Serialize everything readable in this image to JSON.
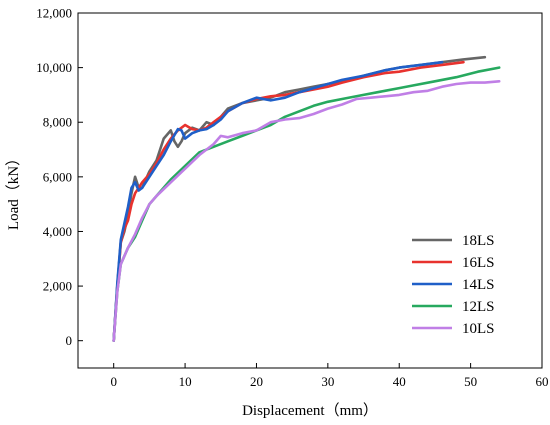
{
  "chart_data": {
    "type": "line",
    "xlabel": "Displacement（mm）",
    "ylabel": "Load（kN）",
    "xlim": [
      -5,
      60
    ],
    "ylim": [
      -1000,
      12000
    ],
    "x_ticks": [
      "0",
      "10",
      "20",
      "30",
      "40",
      "50",
      "60"
    ],
    "y_ticks": [
      "0",
      "2,000",
      "4,000",
      "6,000",
      "8,000",
      "10,000",
      "12,000"
    ],
    "x_tick_values": [
      0,
      10,
      20,
      30,
      40,
      50,
      60
    ],
    "y_tick_values": [
      0,
      2000,
      4000,
      6000,
      8000,
      10000,
      12000
    ],
    "grid": false,
    "legend_position": "bottom-right",
    "series": [
      {
        "name": "18LS",
        "color": "#666666",
        "points": [
          [
            0,
            0
          ],
          [
            0.5,
            2000
          ],
          [
            1.0,
            3600
          ],
          [
            1.5,
            4000
          ],
          [
            2.0,
            4600
          ],
          [
            2.5,
            5400
          ],
          [
            3.0,
            6000
          ],
          [
            3.5,
            5600
          ],
          [
            4.0,
            5600
          ],
          [
            5.0,
            6200
          ],
          [
            6.0,
            6600
          ],
          [
            7.0,
            7400
          ],
          [
            8.0,
            7700
          ],
          [
            8.5,
            7300
          ],
          [
            9.0,
            7100
          ],
          [
            9.5,
            7300
          ],
          [
            10.0,
            7600
          ],
          [
            11.0,
            7800
          ],
          [
            12.0,
            7700
          ],
          [
            13.0,
            8000
          ],
          [
            14.0,
            7900
          ],
          [
            15.0,
            8200
          ],
          [
            16.0,
            8500
          ],
          [
            18.0,
            8700
          ],
          [
            20.0,
            8800
          ],
          [
            22.0,
            8900
          ],
          [
            24.0,
            9100
          ],
          [
            26.0,
            9200
          ],
          [
            28.0,
            9300
          ],
          [
            30.0,
            9400
          ],
          [
            32.0,
            9500
          ],
          [
            35.0,
            9700
          ],
          [
            38.0,
            9900
          ],
          [
            40.0,
            10000
          ],
          [
            43.0,
            10100
          ],
          [
            46.0,
            10200
          ],
          [
            49.0,
            10300
          ],
          [
            52.0,
            10380
          ]
        ]
      },
      {
        "name": "16LS",
        "color": "#e8322e",
        "points": [
          [
            0,
            0
          ],
          [
            0.5,
            2000
          ],
          [
            1.0,
            3600
          ],
          [
            1.5,
            4100
          ],
          [
            2.0,
            4400
          ],
          [
            2.5,
            5000
          ],
          [
            3.0,
            5400
          ],
          [
            3.5,
            5600
          ],
          [
            4.0,
            5800
          ],
          [
            5.0,
            6100
          ],
          [
            6.0,
            6500
          ],
          [
            7.0,
            7000
          ],
          [
            8.0,
            7400
          ],
          [
            9.0,
            7700
          ],
          [
            10.0,
            7900
          ],
          [
            11.0,
            7750
          ],
          [
            12.0,
            7700
          ],
          [
            13.0,
            7800
          ],
          [
            14.0,
            8000
          ],
          [
            15.0,
            8200
          ],
          [
            16.0,
            8400
          ],
          [
            18.0,
            8700
          ],
          [
            20.0,
            8850
          ],
          [
            22.0,
            8950
          ],
          [
            24.0,
            9000
          ],
          [
            26.0,
            9100
          ],
          [
            28.0,
            9200
          ],
          [
            30.0,
            9300
          ],
          [
            32.0,
            9450
          ],
          [
            35.0,
            9650
          ],
          [
            38.0,
            9800
          ],
          [
            40.0,
            9850
          ],
          [
            43.0,
            10000
          ],
          [
            46.0,
            10100
          ],
          [
            49.0,
            10200
          ]
        ]
      },
      {
        "name": "14LS",
        "color": "#1f5fc8",
        "points": [
          [
            0,
            0
          ],
          [
            0.5,
            2100
          ],
          [
            1.0,
            3700
          ],
          [
            1.5,
            4300
          ],
          [
            2.0,
            4900
          ],
          [
            2.5,
            5600
          ],
          [
            3.0,
            5800
          ],
          [
            3.5,
            5500
          ],
          [
            4.0,
            5600
          ],
          [
            5.0,
            6000
          ],
          [
            6.0,
            6400
          ],
          [
            7.0,
            6800
          ],
          [
            8.0,
            7300
          ],
          [
            9.0,
            7750
          ],
          [
            9.5,
            7700
          ],
          [
            10.0,
            7400
          ],
          [
            11.0,
            7600
          ],
          [
            12.0,
            7700
          ],
          [
            13.0,
            7750
          ],
          [
            14.0,
            7900
          ],
          [
            15.0,
            8100
          ],
          [
            16.0,
            8400
          ],
          [
            18.0,
            8700
          ],
          [
            20.0,
            8900
          ],
          [
            22.0,
            8800
          ],
          [
            24.0,
            8900
          ],
          [
            26.0,
            9100
          ],
          [
            28.0,
            9250
          ],
          [
            30.0,
            9400
          ],
          [
            32.0,
            9550
          ],
          [
            35.0,
            9700
          ],
          [
            38.0,
            9900
          ],
          [
            40.0,
            10000
          ],
          [
            43.0,
            10100
          ],
          [
            46.0,
            10200
          ]
        ]
      },
      {
        "name": "12LS",
        "color": "#27a95f",
        "points": [
          [
            0,
            0
          ],
          [
            0.5,
            1800
          ],
          [
            1.0,
            2800
          ],
          [
            2.0,
            3400
          ],
          [
            3.0,
            3800
          ],
          [
            4.0,
            4400
          ],
          [
            5.0,
            5000
          ],
          [
            6.0,
            5300
          ],
          [
            8.0,
            5900
          ],
          [
            10.0,
            6400
          ],
          [
            12.0,
            6900
          ],
          [
            14.0,
            7100
          ],
          [
            16.0,
            7300
          ],
          [
            18.0,
            7500
          ],
          [
            20.0,
            7700
          ],
          [
            22.0,
            7900
          ],
          [
            24.0,
            8200
          ],
          [
            26.0,
            8400
          ],
          [
            28.0,
            8600
          ],
          [
            30.0,
            8750
          ],
          [
            32.0,
            8850
          ],
          [
            35.0,
            9000
          ],
          [
            38.0,
            9150
          ],
          [
            40.0,
            9250
          ],
          [
            42.0,
            9350
          ],
          [
            45.0,
            9500
          ],
          [
            48.0,
            9650
          ],
          [
            51.0,
            9850
          ],
          [
            54.0,
            10000
          ]
        ]
      },
      {
        "name": "10LS",
        "color": "#c07fe6",
        "points": [
          [
            0,
            0
          ],
          [
            0.5,
            1800
          ],
          [
            1.0,
            2800
          ],
          [
            2.0,
            3400
          ],
          [
            3.0,
            3900
          ],
          [
            4.0,
            4500
          ],
          [
            5.0,
            5000
          ],
          [
            6.0,
            5300
          ],
          [
            8.0,
            5800
          ],
          [
            10.0,
            6300
          ],
          [
            12.0,
            6800
          ],
          [
            14.0,
            7200
          ],
          [
            15.0,
            7500
          ],
          [
            16.0,
            7450
          ],
          [
            18.0,
            7600
          ],
          [
            20.0,
            7700
          ],
          [
            22.0,
            8000
          ],
          [
            24.0,
            8100
          ],
          [
            26.0,
            8150
          ],
          [
            28.0,
            8300
          ],
          [
            30.0,
            8500
          ],
          [
            32.0,
            8650
          ],
          [
            34.0,
            8850
          ],
          [
            36.0,
            8900
          ],
          [
            38.0,
            8950
          ],
          [
            40.0,
            9000
          ],
          [
            42.0,
            9100
          ],
          [
            44.0,
            9150
          ],
          [
            46.0,
            9300
          ],
          [
            48.0,
            9400
          ],
          [
            50.0,
            9450
          ],
          [
            52.0,
            9450
          ],
          [
            54.0,
            9500
          ]
        ]
      }
    ]
  }
}
